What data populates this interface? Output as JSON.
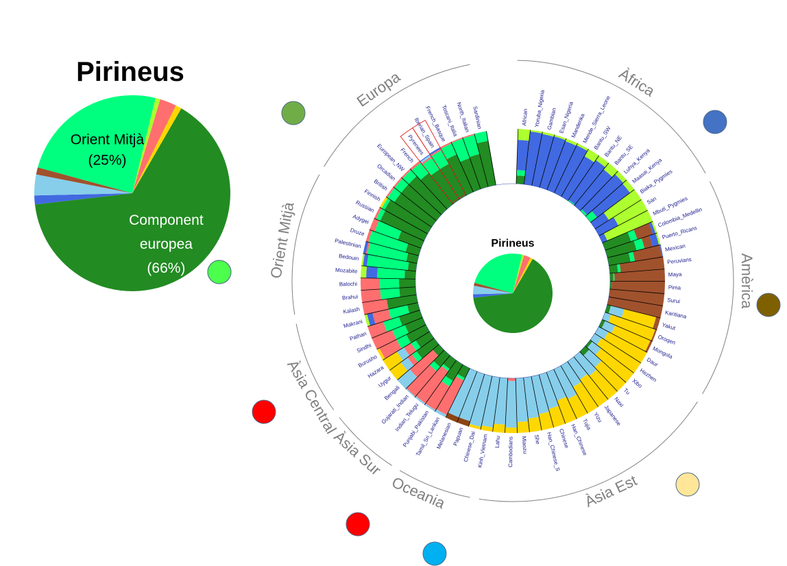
{
  "colors": {
    "europe": "#228b22",
    "middle_east": "#00ff7f",
    "africa": "#4169e1",
    "pygmy": "#adff2f",
    "america": "#a0522d",
    "east_asia_north": "#ffd700",
    "east_asia": "#87ceeb",
    "south_asia": "#ff6f6f",
    "oceania": "#8b4513"
  },
  "chart_data": [
    {
      "type": "pie",
      "title": "Pirineus",
      "slices": [
        {
          "name": "Component europea",
          "value": 66,
          "color": "#228b22",
          "label_lines": [
            "Component",
            "europea",
            "(66%)"
          ]
        },
        {
          "name": "Blue",
          "value": 1.5,
          "color": "#4169e1"
        },
        {
          "name": "Sky",
          "value": 3.5,
          "color": "#87ceeb"
        },
        {
          "name": "Brown",
          "value": 1.2,
          "color": "#a0522d"
        },
        {
          "name": "Orient Mitjà",
          "value": 25,
          "color": "#00ff7f",
          "label_lines": [
            "Orient Mitjà",
            "(25%)"
          ]
        },
        {
          "name": "Lime",
          "value": 0.8,
          "color": "#adff2f"
        },
        {
          "name": "Salmon",
          "value": 2.8,
          "color": "#ff6f6f"
        },
        {
          "name": "Gold",
          "value": 1.0,
          "color": "#ffd700"
        }
      ]
    },
    {
      "type": "radial_bar",
      "regions": [
        {
          "label": "Àfrica",
          "marker_color": "#4472c4"
        },
        {
          "label": "Amèrica",
          "marker_color": "#7f6000"
        },
        {
          "label": "Àsia Est",
          "marker_color": "#ffe699"
        },
        {
          "label": "Oceania",
          "marker_color": "#00b0f0"
        },
        {
          "label": "Àsia Sur",
          "marker_color": "#ff0000"
        },
        {
          "label": "Àsia Central",
          "marker_color": "#ff0000"
        },
        {
          "label": "Orient Mitjà",
          "marker_color": "#4cff4c"
        },
        {
          "label": "Europa",
          "marker_color": "#70ad47"
        }
      ],
      "populations": [
        {
          "name": "African",
          "comp": {
            "africa": 0.55,
            "pygmy": 0.2,
            "europe": 0.15,
            "middle_east": 0.1
          }
        },
        {
          "name": "Yoruba_Nigeria",
          "comp": {
            "africa": 0.97,
            "pygmy": 0.03
          }
        },
        {
          "name": "Gambian",
          "comp": {
            "africa": 0.96,
            "pygmy": 0.04
          }
        },
        {
          "name": "Esan_Nigeria",
          "comp": {
            "africa": 0.97,
            "pygmy": 0.03
          }
        },
        {
          "name": "Mandenka",
          "comp": {
            "africa": 0.95,
            "pygmy": 0.05
          }
        },
        {
          "name": "Mende_Sierra_Leone",
          "comp": {
            "africa": 0.96,
            "pygmy": 0.04
          }
        },
        {
          "name": "Bantu_SW",
          "comp": {
            "africa": 0.85,
            "pygmy": 0.15
          }
        },
        {
          "name": "Bantu_NE",
          "comp": {
            "africa": 0.88,
            "pygmy": 0.1,
            "middle_east": 0.02
          }
        },
        {
          "name": "Bantu_SE",
          "comp": {
            "africa": 0.85,
            "pygmy": 0.15
          }
        },
        {
          "name": "Luhya_Kenya",
          "comp": {
            "africa": 0.88,
            "pygmy": 0.08,
            "middle_east": 0.04
          }
        },
        {
          "name": "Maasai_Kenya",
          "comp": {
            "africa": 0.75,
            "pygmy": 0.1,
            "middle_east": 0.15
          }
        },
        {
          "name": "Biaka_Pygmies",
          "comp": {
            "africa": 0.3,
            "pygmy": 0.7
          }
        },
        {
          "name": "San",
          "comp": {
            "africa": 0.4,
            "pygmy": 0.6
          }
        },
        {
          "name": "Mbuti_Pygmies",
          "comp": {
            "africa": 0.1,
            "pygmy": 0.9
          }
        },
        {
          "name": "Colombia_Medellin",
          "comp": {
            "america": 0.3,
            "europe": 0.5,
            "middle_east": 0.12,
            "africa": 0.05,
            "pygmy": 0.03
          }
        },
        {
          "name": "Puerto_Ricans",
          "comp": {
            "america": 0.15,
            "europe": 0.55,
            "middle_east": 0.15,
            "africa": 0.12,
            "pygmy": 0.03
          }
        },
        {
          "name": "Mexican",
          "comp": {
            "america": 0.5,
            "europe": 0.4,
            "middle_east": 0.08,
            "africa": 0.02
          }
        },
        {
          "name": "Peruvians",
          "comp": {
            "america": 0.8,
            "europe": 0.15,
            "middle_east": 0.05
          }
        },
        {
          "name": "Maya",
          "comp": {
            "america": 0.92,
            "europe": 0.06,
            "middle_east": 0.02
          }
        },
        {
          "name": "Pima",
          "comp": {
            "america": 0.97,
            "europe": 0.03
          }
        },
        {
          "name": "Surui",
          "comp": {
            "america": 1.0
          }
        },
        {
          "name": "Karitiana",
          "comp": {
            "america": 1.0
          }
        },
        {
          "name": "Yakut",
          "comp": {
            "east_asia_north": 0.6,
            "east_asia": 0.25,
            "america": 0.08,
            "europe": 0.07
          }
        },
        {
          "name": "Oroqen",
          "comp": {
            "east_asia_north": 0.85,
            "east_asia": 0.12,
            "america": 0.03
          }
        },
        {
          "name": "Mongola",
          "comp": {
            "east_asia_north": 0.7,
            "east_asia": 0.2,
            "europe": 0.06,
            "america": 0.04
          }
        },
        {
          "name": "Daur",
          "comp": {
            "east_asia_north": 0.8,
            "east_asia": 0.2
          }
        },
        {
          "name": "Hezhen",
          "comp": {
            "east_asia_north": 0.85,
            "east_asia": 0.15
          }
        },
        {
          "name": "Xibo",
          "comp": {
            "east_asia_north": 0.75,
            "east_asia": 0.2,
            "europe": 0.05
          }
        },
        {
          "name": "Tu",
          "comp": {
            "east_asia_north": 0.6,
            "east_asia": 0.3,
            "europe": 0.1
          }
        },
        {
          "name": "Naxi",
          "comp": {
            "east_asia_north": 0.55,
            "east_asia": 0.45
          }
        },
        {
          "name": "Japanese",
          "comp": {
            "east_asia_north": 0.6,
            "east_asia": 0.4
          }
        },
        {
          "name": "Yizu",
          "comp": {
            "east_asia_north": 0.55,
            "east_asia": 0.45
          }
        },
        {
          "name": "Tujia",
          "comp": {
            "east_asia_north": 0.4,
            "east_asia": 0.6
          }
        },
        {
          "name": "Han_Chinese",
          "comp": {
            "east_asia_north": 0.45,
            "east_asia": 0.55
          }
        },
        {
          "name": "Chinese",
          "comp": {
            "east_asia_north": 0.35,
            "east_asia": 0.65
          }
        },
        {
          "name": "Han_Chinese_S",
          "comp": {
            "east_asia_north": 0.3,
            "east_asia": 0.7
          }
        },
        {
          "name": "She",
          "comp": {
            "east_asia_north": 0.25,
            "east_asia": 0.75
          }
        },
        {
          "name": "Miaozu",
          "comp": {
            "east_asia_north": 0.2,
            "east_asia": 0.8
          }
        },
        {
          "name": "Cambodians",
          "comp": {
            "east_asia_north": 0.1,
            "east_asia": 0.85,
            "south_asia": 0.05
          }
        },
        {
          "name": "Lahu",
          "comp": {
            "east_asia_north": 0.15,
            "east_asia": 0.85
          }
        },
        {
          "name": "Kinh_Vietnam",
          "comp": {
            "east_asia_north": 0.08,
            "east_asia": 0.92
          }
        },
        {
          "name": "Chinese_Dai",
          "comp": {
            "east_asia_north": 0.05,
            "east_asia": 0.95
          }
        },
        {
          "name": "Papuan",
          "comp": {
            "oceania": 0.1,
            "east_asia": 0.9
          }
        },
        {
          "name": "Melanesian",
          "comp": {
            "oceania": 0.1,
            "east_asia": 0.9
          }
        },
        {
          "name": "Tamil_Sri_Lankan",
          "comp": {
            "south_asia": 0.7,
            "europe": 0.2,
            "middle_east": 0.05,
            "east_asia": 0.05
          }
        },
        {
          "name": "Punjabi_Pakistan",
          "comp": {
            "south_asia": 0.5,
            "europe": 0.35,
            "middle_east": 0.12,
            "east_asia": 0.03
          }
        },
        {
          "name": "Indian_Telugu",
          "comp": {
            "south_asia": 0.72,
            "europe": 0.2,
            "middle_east": 0.05,
            "east_asia": 0.03
          }
        },
        {
          "name": "Gujarati_Indian",
          "comp": {
            "south_asia": 0.6,
            "europe": 0.28,
            "middle_east": 0.1,
            "east_asia": 0.02
          }
        },
        {
          "name": "Bengali",
          "comp": {
            "south_asia": 0.55,
            "europe": 0.15,
            "east_asia": 0.3
          }
        },
        {
          "name": "Uygur",
          "comp": {
            "south_asia": 0.1,
            "europe": 0.4,
            "middle_east": 0.1,
            "east_asia_north": 0.25,
            "east_asia": 0.15
          }
        },
        {
          "name": "Hazara",
          "comp": {
            "south_asia": 0.15,
            "europe": 0.3,
            "middle_east": 0.1,
            "east_asia_north": 0.3,
            "east_asia": 0.15
          }
        },
        {
          "name": "Burusho",
          "comp": {
            "south_asia": 0.35,
            "europe": 0.4,
            "middle_east": 0.2,
            "east_asia_north": 0.05
          }
        },
        {
          "name": "Sindhi",
          "comp": {
            "south_asia": 0.4,
            "europe": 0.35,
            "middle_east": 0.25
          }
        },
        {
          "name": "Pathan",
          "comp": {
            "south_asia": 0.3,
            "europe": 0.4,
            "middle_east": 0.3
          }
        },
        {
          "name": "Makrani",
          "comp": {
            "south_asia": 0.3,
            "europe": 0.2,
            "middle_east": 0.35,
            "africa": 0.1,
            "pygmy": 0.05
          }
        },
        {
          "name": "Kalash",
          "comp": {
            "south_asia": 0.45,
            "europe": 0.55
          }
        },
        {
          "name": "Brahui",
          "comp": {
            "south_asia": 0.35,
            "europe": 0.3,
            "middle_east": 0.35
          }
        },
        {
          "name": "Balochi",
          "comp": {
            "south_asia": 0.35,
            "europe": 0.3,
            "middle_east": 0.35
          }
        },
        {
          "name": "Mozabite",
          "comp": {
            "middle_east": 0.5,
            "europe": 0.2,
            "africa": 0.2,
            "pygmy": 0.1
          }
        },
        {
          "name": "Bedouin",
          "comp": {
            "middle_east": 0.75,
            "europe": 0.15,
            "africa": 0.07,
            "pygmy": 0.03
          }
        },
        {
          "name": "Palestinian",
          "comp": {
            "middle_east": 0.72,
            "europe": 0.2,
            "africa": 0.05,
            "south_asia": 0.03
          }
        },
        {
          "name": "Druze",
          "comp": {
            "middle_east": 0.7,
            "europe": 0.25,
            "south_asia": 0.05
          }
        },
        {
          "name": "Adygei",
          "comp": {
            "middle_east": 0.45,
            "europe": 0.45,
            "south_asia": 0.1
          }
        },
        {
          "name": "Russian",
          "comp": {
            "europe": 0.88,
            "middle_east": 0.08,
            "south_asia": 0.04
          }
        },
        {
          "name": "Finnish",
          "comp": {
            "europe": 0.9,
            "middle_east": 0.06,
            "east_asia_north": 0.04
          }
        },
        {
          "name": "British",
          "comp": {
            "europe": 0.82,
            "middle_east": 0.15,
            "south_asia": 0.03
          }
        },
        {
          "name": "Orcadian",
          "comp": {
            "europe": 0.82,
            "middle_east": 0.15,
            "south_asia": 0.03
          }
        },
        {
          "name": "European_NW",
          "comp": {
            "europe": 0.82,
            "middle_east": 0.15,
            "south_asia": 0.03
          }
        },
        {
          "name": "French",
          "comp": {
            "europe": 0.72,
            "middle_east": 0.24,
            "south_asia": 0.04
          }
        },
        {
          "name": "Pyrenees",
          "comp": {
            "europe": 0.66,
            "middle_east": 0.25,
            "south_asia": 0.03,
            "east_asia": 0.035,
            "africa": 0.015
          }
        },
        {
          "name": "Iberian_Spain",
          "comp": {
            "europe": 0.66,
            "middle_east": 0.28,
            "south_asia": 0.03,
            "africa": 0.03
          }
        },
        {
          "name": "French_Basque",
          "comp": {
            "europe": 0.75,
            "middle_east": 0.22,
            "south_asia": 0.03
          }
        },
        {
          "name": "Toscani_Italia",
          "comp": {
            "europe": 0.6,
            "middle_east": 0.38,
            "south_asia": 0.02
          }
        },
        {
          "name": "North_Italian",
          "comp": {
            "europe": 0.62,
            "middle_east": 0.36,
            "south_asia": 0.02
          }
        },
        {
          "name": "Sardinian",
          "comp": {
            "europe": 0.82,
            "middle_east": 0.18
          }
        }
      ],
      "inner_pie": {
        "title": "Pirineus",
        "slices": [
          {
            "value": 66,
            "color": "#228b22"
          },
          {
            "value": 1.5,
            "color": "#4169e1"
          },
          {
            "value": 3.5,
            "color": "#87ceeb"
          },
          {
            "value": 1.2,
            "color": "#a0522d"
          },
          {
            "value": 25,
            "color": "#00ff7f"
          },
          {
            "value": 0.8,
            "color": "#adff2f"
          },
          {
            "value": 2.8,
            "color": "#ff6f6f"
          },
          {
            "value": 1.0,
            "color": "#ffd700"
          }
        ]
      },
      "highlighted": [
        "Iberian_Spain",
        "Pyrenees"
      ]
    }
  ]
}
